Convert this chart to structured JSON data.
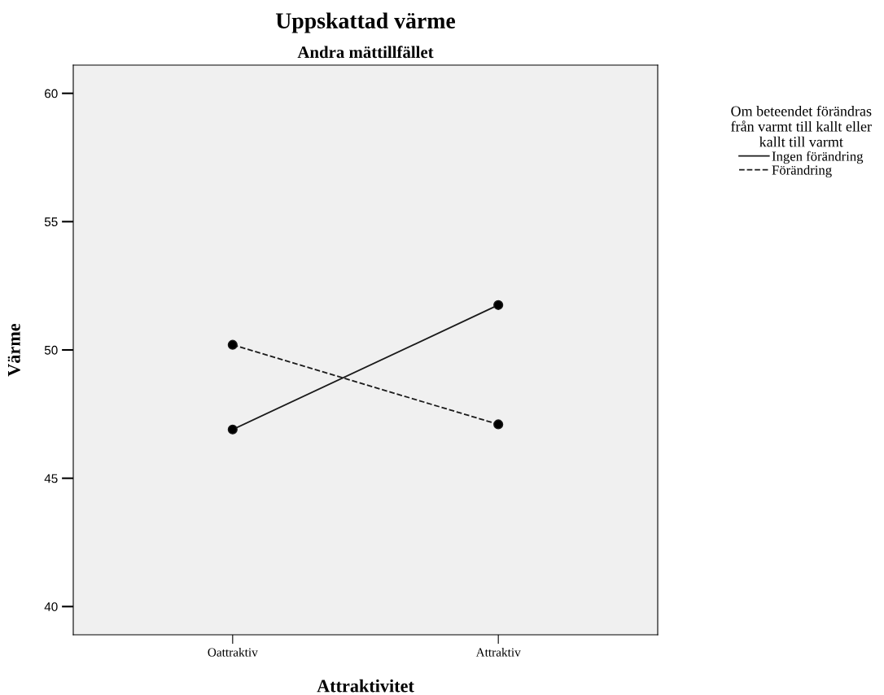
{
  "chart_data": {
    "type": "line",
    "title": "Uppskattad värme",
    "subtitle": "Andra mättillfället",
    "xlabel": "Attraktivitet",
    "ylabel": "Värme",
    "legend_title": "Om beteendet förändras\nfrån varmt till kallt eller\nkallt till varmt",
    "categories": [
      "Oattraktiv",
      "Attraktiv"
    ],
    "series": [
      {
        "name": "Ingen förändring",
        "color": "#1a1a1a",
        "line_style": "solid",
        "values": [
          46.9,
          51.75
        ]
      },
      {
        "name": "Förändring",
        "color": "#1a1a1a",
        "line_style": "dashed",
        "values": [
          50.2,
          47.1
        ]
      }
    ],
    "ylim": [
      38.9,
      61.1
    ],
    "yticks": [
      40,
      45,
      50,
      55,
      60
    ],
    "grid": false,
    "legend": "top right",
    "marker": "circle"
  }
}
